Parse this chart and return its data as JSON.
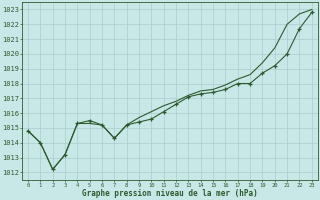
{
  "title": "Graphe pression niveau de la mer (hPa)",
  "x": [
    0,
    1,
    2,
    3,
    4,
    5,
    6,
    7,
    8,
    9,
    10,
    11,
    12,
    13,
    14,
    15,
    16,
    17,
    18,
    19,
    20,
    21,
    22,
    23
  ],
  "line_smooth": [
    1014.8,
    1014.0,
    1012.2,
    1013.2,
    1015.3,
    1015.3,
    1015.2,
    1014.3,
    1015.2,
    1015.7,
    1016.1,
    1016.5,
    1016.8,
    1017.2,
    1017.5,
    1017.6,
    1017.9,
    1018.3,
    1018.6,
    1019.4,
    1020.4,
    1022.0,
    1022.7,
    1023.0
  ],
  "line_marker": [
    1014.8,
    1014.0,
    1012.2,
    1013.2,
    1015.3,
    1015.5,
    1015.2,
    1014.3,
    1015.2,
    1015.4,
    1015.6,
    1016.1,
    1016.6,
    1017.1,
    1017.3,
    1017.4,
    1017.6,
    1018.0,
    1018.0,
    1018.7,
    1019.2,
    1020.0,
    1021.7,
    1022.8
  ],
  "bg_color": "#c8e8e8",
  "grid_color": "#aacccc",
  "line_color": "#2d5a2d",
  "ylim": [
    1011.5,
    1023.5
  ],
  "yticks": [
    1012,
    1013,
    1014,
    1015,
    1016,
    1017,
    1018,
    1019,
    1020,
    1021,
    1022,
    1023
  ],
  "xlim": [
    -0.5,
    23.5
  ],
  "figwidth": 3.2,
  "figheight": 2.0,
  "dpi": 100
}
